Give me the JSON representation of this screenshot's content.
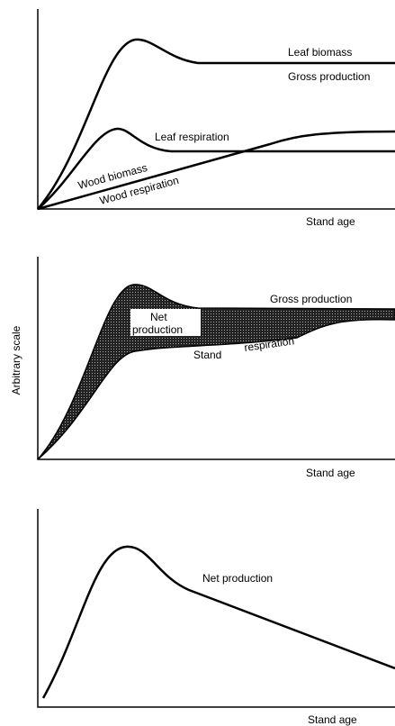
{
  "panels": [
    {
      "labels": [
        "Leaf biomass",
        "Gross production",
        "Leaf respiration",
        "Wood biomass",
        "Wood respiration"
      ],
      "x_axis": "Stand age"
    },
    {
      "y_axis": "Arbitrary scale",
      "labels": [
        "Gross production",
        "Net",
        "production",
        "Stand",
        "respiration"
      ],
      "x_axis": "Stand age"
    },
    {
      "labels": [
        "Net production"
      ],
      "x_axis": "Stand age"
    }
  ]
}
